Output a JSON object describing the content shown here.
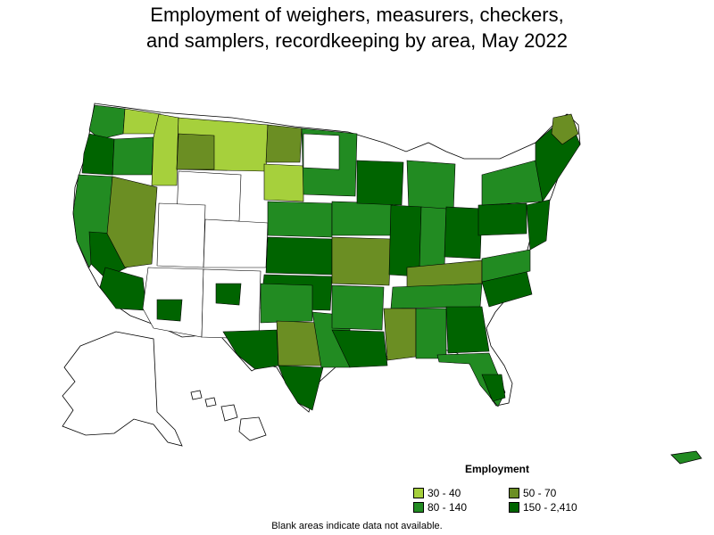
{
  "title_line1": "Employment of weighers, measurers, checkers,",
  "title_line2": "and samplers, recordkeeping by area, May 2022",
  "legend": {
    "title": "Employment",
    "items": [
      {
        "label": "30 - 40",
        "color": "#a6d03c"
      },
      {
        "label": "50 - 70",
        "color": "#6b8e23"
      },
      {
        "label": "80 - 140",
        "color": "#228b22"
      },
      {
        "label": "150 - 2,410",
        "color": "#006400"
      }
    ]
  },
  "note": "Blank areas indicate data not available.",
  "colors": {
    "no_data": "#ffffff",
    "border": "#000000"
  }
}
